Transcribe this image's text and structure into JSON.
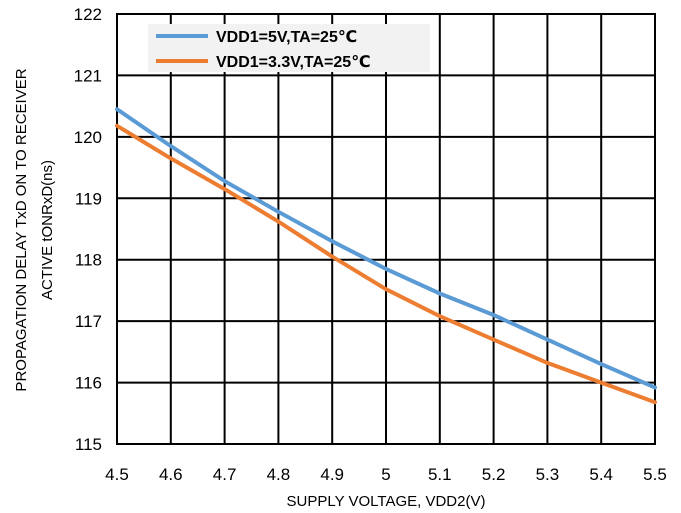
{
  "chart_data": {
    "type": "line",
    "title": "",
    "xlabel": "SUPPLY VOLTAGE, VDD2(V)",
    "ylabel_lines": [
      "PROPAGATION  DELAY  TxD ON TO RECEIVER",
      "ACTIVE tONRxD(ns)"
    ],
    "xlim": [
      4.5,
      5.5
    ],
    "ylim": [
      115,
      122
    ],
    "x_ticks": [
      "4.5",
      "4.6",
      "4.7",
      "4.8",
      "4.9",
      "5",
      "5.1",
      "5.2",
      "5.3",
      "5.4",
      "5.5"
    ],
    "y_ticks": [
      "115",
      "116",
      "117",
      "118",
      "119",
      "120",
      "121",
      "122"
    ],
    "grid": true,
    "legend_position": "top-left",
    "x": [
      4.5,
      4.6,
      4.7,
      4.8,
      4.9,
      5.0,
      5.1,
      5.2,
      5.3,
      5.4,
      5.5
    ],
    "series": [
      {
        "name": "VDD1=5V,TA=25℃",
        "color": "#5B9BD5",
        "values": [
          120.45,
          119.85,
          119.28,
          118.78,
          118.3,
          117.85,
          117.45,
          117.1,
          116.7,
          116.3,
          115.92
        ]
      },
      {
        "name": "VDD1=3.3V,TA=25℃",
        "color": "#ED7D31",
        "values": [
          120.18,
          119.65,
          119.15,
          118.62,
          118.05,
          117.52,
          117.08,
          116.7,
          116.32,
          116.0,
          115.68
        ]
      }
    ]
  }
}
